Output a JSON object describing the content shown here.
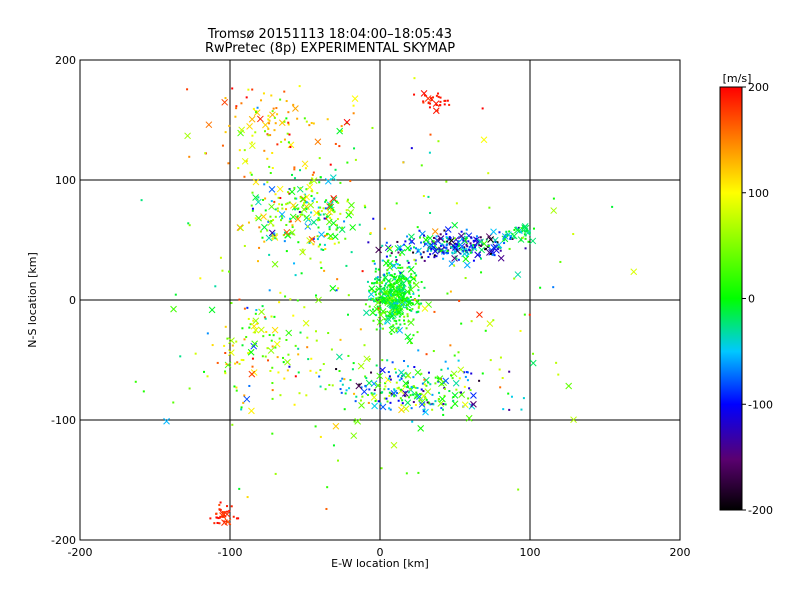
{
  "chart_data": {
    "type": "scatter",
    "title": "Tromsø 20151113 18:04:00–18:05:43",
    "subtitle": "RwPretec (8p) EXPERIMENTAL SKYMAP",
    "xlabel": "E-W location [km]",
    "ylabel": "N-S location [km]",
    "xlim": [
      -200,
      200
    ],
    "ylim": [
      -200,
      200
    ],
    "x_ticks": [
      -200,
      -100,
      0,
      100,
      200
    ],
    "y_ticks": [
      -200,
      -100,
      0,
      100,
      200
    ],
    "grid": true,
    "colorbar": {
      "label": "[m/s]",
      "range": [
        -200,
        200
      ],
      "ticks": [
        200,
        100,
        0,
        -100,
        -200
      ],
      "colormap": "black-purple-blue-cyan-green-yellow-red"
    },
    "markers": [
      "x",
      "dot"
    ],
    "clusters": [
      {
        "x": 10,
        "y": 5,
        "sx": 14,
        "sy": 22,
        "n": 420,
        "v_mean": 0,
        "v_spread": 60
      },
      {
        "x": 45,
        "y": 45,
        "sx": 30,
        "sy": 10,
        "n": 260,
        "v_mean": -80,
        "v_spread": 140
      },
      {
        "x": -50,
        "y": 70,
        "sx": 30,
        "sy": 28,
        "n": 230,
        "v_mean": 40,
        "v_spread": 170
      },
      {
        "x": 20,
        "y": -75,
        "sx": 45,
        "sy": 18,
        "n": 240,
        "v_mean": -20,
        "v_spread": 170
      },
      {
        "x": -80,
        "y": -40,
        "sx": 35,
        "sy": 40,
        "n": 110,
        "v_mean": 60,
        "v_spread": 150
      },
      {
        "x": -105,
        "y": -180,
        "sx": 8,
        "sy": 8,
        "n": 35,
        "v_mean": 190,
        "v_spread": 20
      },
      {
        "x": 35,
        "y": 165,
        "sx": 8,
        "sy": 8,
        "n": 30,
        "v_mean": 190,
        "v_spread": 15
      },
      {
        "x": -70,
        "y": 145,
        "sx": 40,
        "sy": 30,
        "n": 110,
        "v_mean": 120,
        "v_spread": 140
      },
      {
        "x": 95,
        "y": 55,
        "sx": 12,
        "sy": 6,
        "n": 40,
        "v_mean": -10,
        "v_spread": 50
      },
      {
        "x": 0,
        "y": 0,
        "sx": 120,
        "sy": 120,
        "n": 200,
        "v_mean": 40,
        "v_spread": 170
      }
    ]
  }
}
